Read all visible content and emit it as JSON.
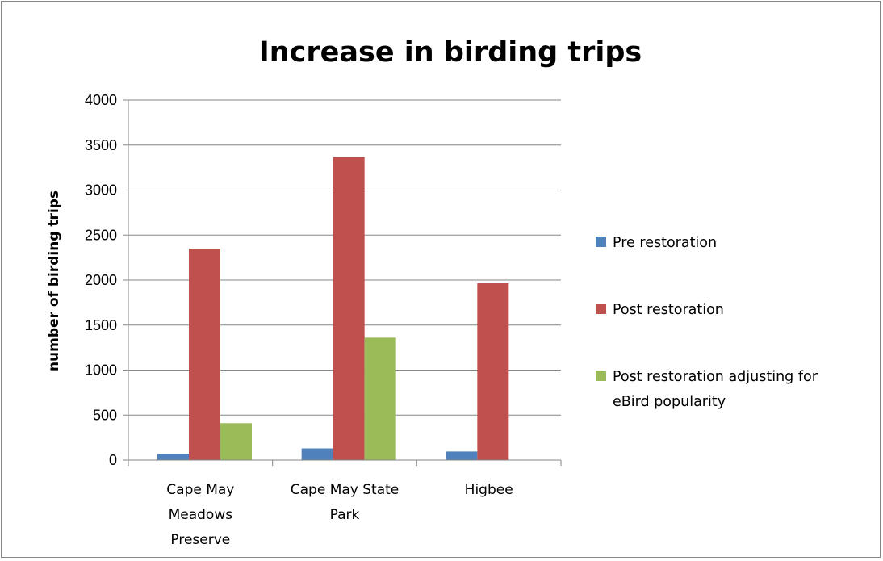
{
  "chart_data": {
    "type": "bar",
    "title": "Increase in birding trips",
    "ylabel": "number of birding trips",
    "xlabel": "",
    "ylim": [
      0,
      4000
    ],
    "yticks": [
      0,
      500,
      1000,
      1500,
      2000,
      2500,
      3000,
      3500,
      4000
    ],
    "grid": true,
    "legend_position": "right",
    "categories": [
      [
        "Cape May",
        "Meadows",
        "Preserve"
      ],
      [
        "Cape May State",
        "Park"
      ],
      [
        "Higbee"
      ]
    ],
    "series": [
      {
        "name": "Pre restoration",
        "color": "#4F81BD",
        "values": [
          70,
          130,
          95
        ]
      },
      {
        "name": "Post restoration",
        "color": "#C0504D",
        "values": [
          2350,
          3365,
          1965
        ]
      },
      {
        "name": [
          "Post restoration adjusting for",
          "eBird popularity"
        ],
        "color": "#9BBB59",
        "values": [
          410,
          1360,
          0
        ]
      }
    ]
  }
}
